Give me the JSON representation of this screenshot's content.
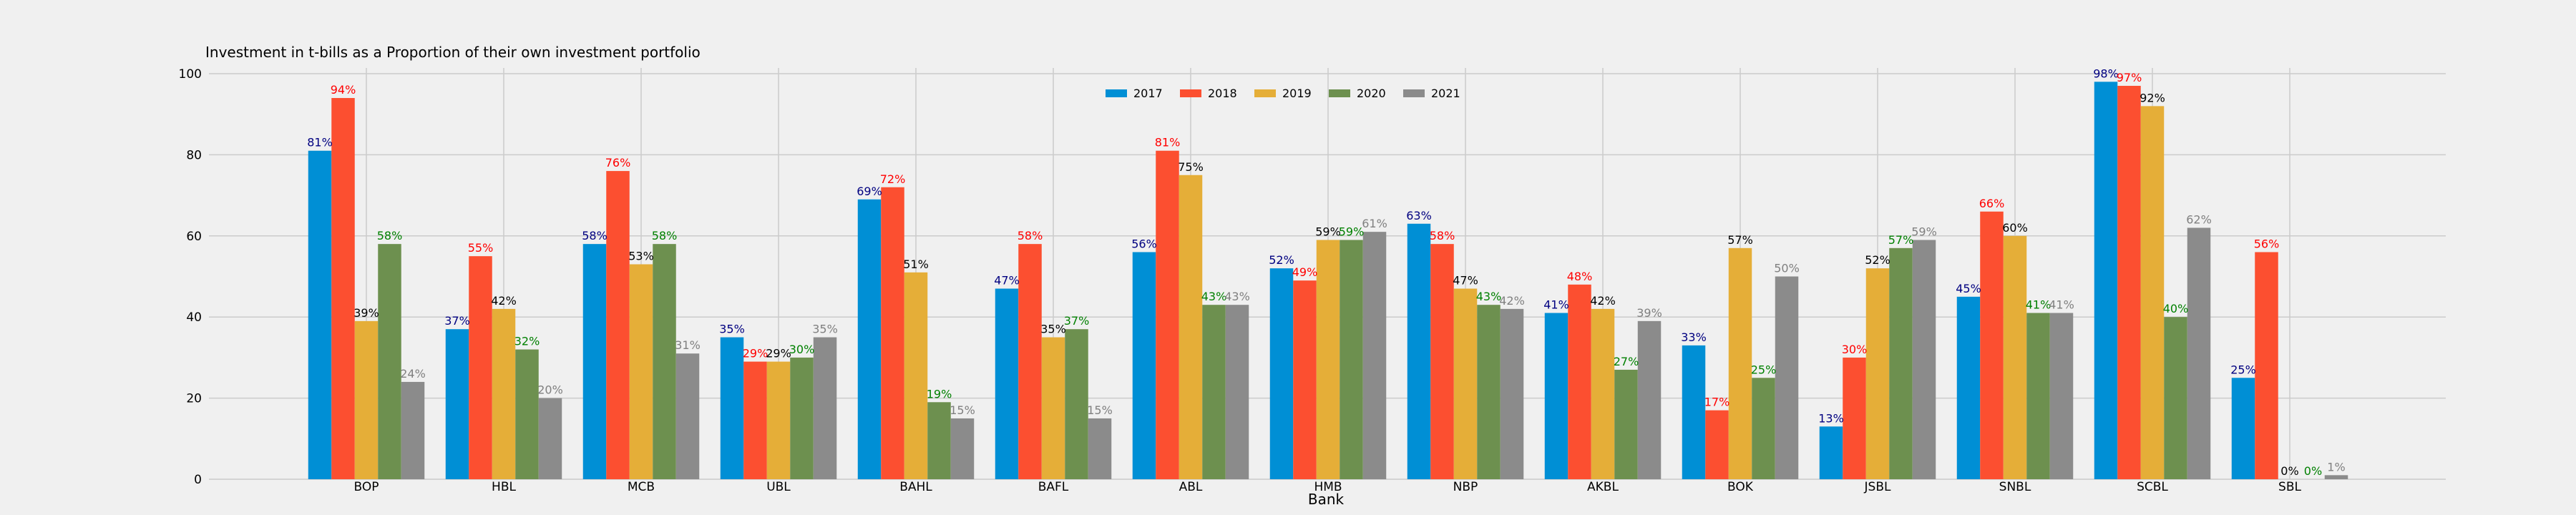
{
  "chart_data": {
    "type": "bar",
    "title": "Investment in t-bills as a Proportion of their own investment portfolio",
    "xlabel": "Bank",
    "ylabel": "",
    "ylim": [
      0,
      100
    ],
    "yticks": [
      0,
      20,
      40,
      60,
      80,
      100
    ],
    "grid": true,
    "legend_position": "top-center",
    "categories": [
      "BOP",
      "HBL",
      "MCB",
      "UBL",
      "BAHL",
      "BAFL",
      "ABL",
      "HMB",
      "NBP",
      "AKBL",
      "BOK",
      "JSBL",
      "SNBL",
      "SCBL",
      "SBL"
    ],
    "series": [
      {
        "name": "2017",
        "color": "#008fd5",
        "label_color": "#000080",
        "values": [
          81,
          37,
          58,
          35,
          69,
          47,
          56,
          52,
          63,
          41,
          33,
          13,
          45,
          98,
          25
        ],
        "labels": [
          "81%",
          "37%",
          "58%",
          "35%",
          "69%",
          "47%",
          "56%",
          "52%",
          "63%",
          "41%",
          "33%",
          "13%",
          "45%",
          "98%",
          "25%"
        ]
      },
      {
        "name": "2018",
        "color": "#fc4f30",
        "label_color": "#ff0000",
        "values": [
          94,
          55,
          76,
          29,
          72,
          58,
          81,
          49,
          58,
          48,
          17,
          30,
          66,
          97,
          56
        ],
        "labels": [
          "94%",
          "55%",
          "76%",
          "29%",
          "72%",
          "58%",
          "81%",
          "49%",
          "58%",
          "48%",
          "17%",
          "30%",
          "66%",
          "97%",
          "56%"
        ]
      },
      {
        "name": "2019",
        "color": "#e5ae38",
        "label_color": "#000000",
        "values": [
          39,
          42,
          53,
          29,
          51,
          35,
          75,
          59,
          47,
          42,
          57,
          52,
          60,
          92,
          0
        ],
        "labels": [
          "39%",
          "42%",
          "53%",
          "29%",
          "51%",
          "35%",
          "75%",
          "59%",
          "47%",
          "42%",
          "57%",
          "52%",
          "60%",
          "92%",
          "0%"
        ]
      },
      {
        "name": "2020",
        "color": "#6d904f",
        "label_color": "#008000",
        "values": [
          58,
          32,
          58,
          30,
          19,
          37,
          43,
          59,
          43,
          27,
          25,
          57,
          41,
          40,
          0
        ],
        "labels": [
          "58%",
          "32%",
          "58%",
          "30%",
          "19%",
          "37%",
          "43%",
          "59%",
          "43%",
          "27%",
          "25%",
          "57%",
          "41%",
          "40%",
          "0%"
        ]
      },
      {
        "name": "2021",
        "color": "#8b8b8b",
        "label_color": "#808080",
        "values": [
          24,
          20,
          31,
          35,
          15,
          15,
          43,
          61,
          42,
          39,
          50,
          59,
          41,
          62,
          1
        ],
        "labels": [
          "24%",
          "20%",
          "31%",
          "35%",
          "15%",
          "15%",
          "43%",
          "61%",
          "42%",
          "39%",
          "50%",
          "59%",
          "41%",
          "62%",
          "1%"
        ]
      }
    ]
  }
}
